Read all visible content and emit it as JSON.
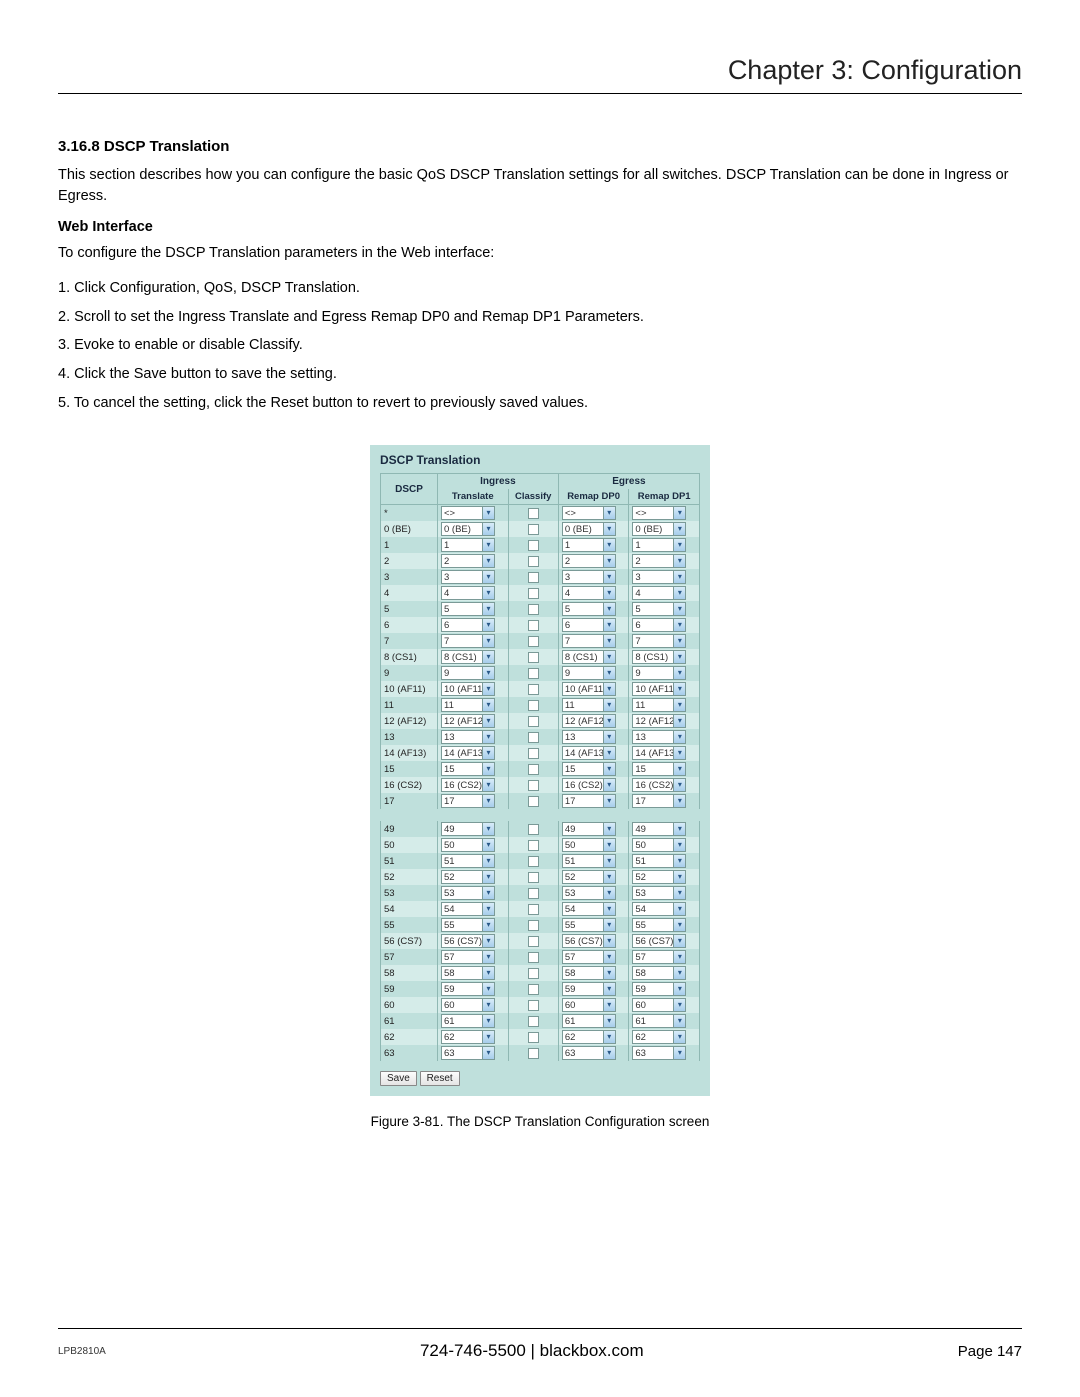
{
  "chapter": "Chapter 3: Configuration",
  "section_heading": "3.16.8 DSCP Translation",
  "intro": "This section describes how you can configure the basic QoS DSCP Translation settings for all switches. DSCP Translation can be done in Ingress or Egress.",
  "web_interface_heading": "Web Interface",
  "web_intro": "To configure the DSCP Translation parameters in the Web interface:",
  "steps": [
    "1. Click Configuration, QoS, DSCP Translation.",
    "2. Scroll to set the Ingress Translate and Egress Remap DP0 and Remap DP1 Parameters.",
    "3. Evoke to enable or disable Classify.",
    "4. Click the Save button to save the setting.",
    "5. To cancel the setting, click the Reset button to revert to previously saved values."
  ],
  "screenshot": {
    "title": "DSCP Translation",
    "col_dscp": "DSCP",
    "group_ingress": "Ingress",
    "group_egress": "Egress",
    "col_translate": "Translate",
    "col_classify": "Classify",
    "col_remap_dp0": "Remap DP0",
    "col_remap_dp1": "Remap DP1",
    "wildcard_label": "*",
    "wildcard_value": "<>",
    "rows_top": [
      {
        "l": "0  (BE)",
        "v": "0  (BE)"
      },
      {
        "l": "1",
        "v": "1"
      },
      {
        "l": "2",
        "v": "2"
      },
      {
        "l": "3",
        "v": "3"
      },
      {
        "l": "4",
        "v": "4"
      },
      {
        "l": "5",
        "v": "5"
      },
      {
        "l": "6",
        "v": "6"
      },
      {
        "l": "7",
        "v": "7"
      },
      {
        "l": "8  (CS1)",
        "v": "8  (CS1)"
      },
      {
        "l": "9",
        "v": "9"
      },
      {
        "l": "10 (AF11)",
        "v": "10 (AF11)"
      },
      {
        "l": "11",
        "v": "11"
      },
      {
        "l": "12 (AF12)",
        "v": "12 (AF12)"
      },
      {
        "l": "13",
        "v": "13"
      },
      {
        "l": "14 (AF13)",
        "v": "14 (AF13)"
      },
      {
        "l": "15",
        "v": "15"
      },
      {
        "l": "16 (CS2)",
        "v": "16 (CS2)"
      },
      {
        "l": "17",
        "v": "17"
      }
    ],
    "rows_bottom": [
      {
        "l": "49",
        "v": "49"
      },
      {
        "l": "50",
        "v": "50"
      },
      {
        "l": "51",
        "v": "51"
      },
      {
        "l": "52",
        "v": "52"
      },
      {
        "l": "53",
        "v": "53"
      },
      {
        "l": "54",
        "v": "54"
      },
      {
        "l": "55",
        "v": "55"
      },
      {
        "l": "56 (CS7)",
        "v": "56 (CS7)"
      },
      {
        "l": "57",
        "v": "57"
      },
      {
        "l": "58",
        "v": "58"
      },
      {
        "l": "59",
        "v": "59"
      },
      {
        "l": "60",
        "v": "60"
      },
      {
        "l": "61",
        "v": "61"
      },
      {
        "l": "62",
        "v": "62"
      },
      {
        "l": "63",
        "v": "63"
      }
    ],
    "save_btn": "Save",
    "reset_btn": "Reset"
  },
  "caption": "Figure 3-81. The DSCP Translation Configuration screen",
  "footer": {
    "left": "LPB2810A",
    "center": "724-746-5500   |   blackbox.com",
    "right": "Page 147"
  },
  "colors": {
    "panel_bg": "#bfe0dc",
    "panel_alt": "#d5ece9",
    "border": "#8fb8b3",
    "header_text": "#1a2a40",
    "dropdown_btn": "#a7cdeb"
  }
}
